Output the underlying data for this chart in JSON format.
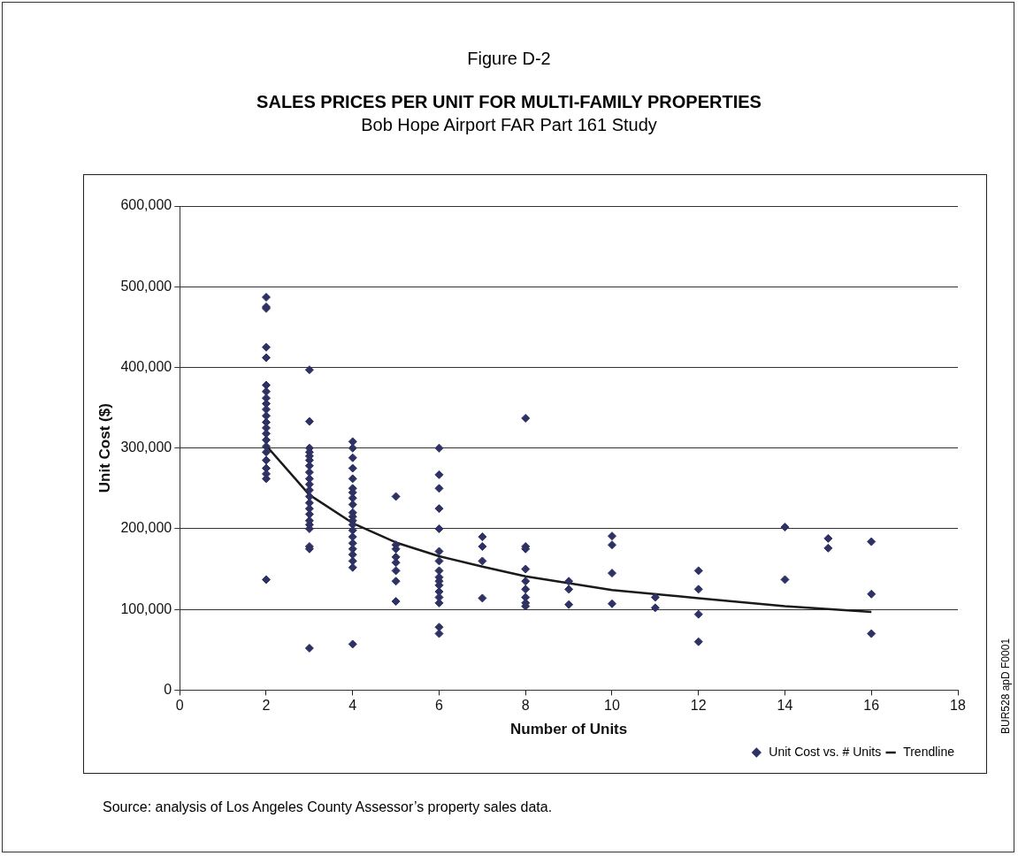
{
  "chart_data": {
    "type": "scatter",
    "title": "SALES PRICES PER UNIT FOR MULTI-FAMILY PROPERTIES",
    "subtitle": "Bob Hope Airport FAR Part 161 Study",
    "xlabel": "Number of Units",
    "ylabel": "Unit Cost ($)",
    "xlim": [
      0,
      18
    ],
    "xticks": [
      0,
      2,
      4,
      6,
      8,
      10,
      12,
      14,
      16,
      18
    ],
    "ylim": [
      0,
      600000
    ],
    "yticks": [
      0,
      {
        "value": 100000,
        "label": "100,000"
      },
      {
        "value": 200000,
        "label": "200,000"
      },
      {
        "value": 300000,
        "label": "300,000"
      },
      {
        "value": 400000,
        "label": "400,000"
      },
      {
        "value": 500000,
        "label": "500,000"
      },
      {
        "value": 600000,
        "label": "600,000"
      }
    ],
    "grid": "y",
    "legend": "bottom right",
    "marker": "diamond",
    "series": [
      {
        "name": "Unit Cost vs. # Units",
        "color": "#2e3163",
        "x": [
          2,
          2,
          2,
          2,
          2,
          2,
          2,
          2,
          2,
          2,
          2,
          2,
          2,
          2,
          2,
          2,
          2,
          2,
          2,
          2,
          2,
          2,
          3,
          3,
          3,
          3,
          3,
          3,
          3,
          3,
          3,
          3,
          3,
          3,
          3,
          3,
          3,
          3,
          3,
          3,
          3,
          3,
          3,
          4,
          4,
          4,
          4,
          4,
          4,
          4,
          4,
          4,
          4,
          4,
          4,
          4,
          4,
          4,
          4,
          4,
          4,
          4,
          4,
          4,
          5,
          5,
          5,
          5,
          5,
          5,
          5,
          5,
          6,
          6,
          6,
          6,
          6,
          6,
          6,
          6,
          6,
          6,
          6,
          6,
          6,
          6,
          6,
          6,
          7,
          7,
          7,
          7,
          8,
          8,
          8,
          8,
          8,
          8,
          8,
          8,
          8,
          9,
          9,
          9,
          10,
          10,
          10,
          10,
          11,
          11,
          12,
          12,
          12,
          12,
          14,
          14,
          15,
          15,
          16,
          16,
          16
        ],
        "values": [
          487000,
          475000,
          473000,
          425000,
          412000,
          378000,
          370000,
          362000,
          355000,
          348000,
          340000,
          332000,
          325000,
          318000,
          310000,
          302000,
          295000,
          285000,
          275000,
          268000,
          262000,
          137000,
          397000,
          333000,
          300000,
          295000,
          290000,
          285000,
          278000,
          270000,
          262000,
          255000,
          248000,
          240000,
          232000,
          225000,
          218000,
          210000,
          205000,
          200000,
          178000,
          175000,
          52000,
          308000,
          300000,
          288000,
          275000,
          262000,
          250000,
          245000,
          238000,
          230000,
          220000,
          215000,
          210000,
          205000,
          198000,
          190000,
          182000,
          175000,
          168000,
          160000,
          152000,
          57000,
          240000,
          180000,
          175000,
          165000,
          158000,
          148000,
          135000,
          110000,
          300000,
          267000,
          250000,
          225000,
          200000,
          172000,
          160000,
          148000,
          140000,
          135000,
          130000,
          122000,
          115000,
          108000,
          78000,
          70000,
          190000,
          178000,
          160000,
          114000,
          337000,
          178000,
          175000,
          150000,
          135000,
          125000,
          115000,
          108000,
          104000,
          135000,
          125000,
          106000,
          191000,
          180000,
          145000,
          107000,
          115000,
          102000,
          148000,
          125000,
          94000,
          60000,
          202000,
          137000,
          188000,
          176000,
          184000,
          119000,
          70000
        ]
      },
      {
        "name": "Trendline",
        "color": "#1a1a1a",
        "type": "line",
        "marker": "none",
        "line_style": "solid",
        "x": [
          2,
          3,
          4,
          5,
          6,
          7,
          8,
          10,
          12,
          14,
          16
        ],
        "values": [
          303000,
          242000,
          207000,
          183000,
          166000,
          153000,
          141000,
          124000,
          114000,
          104000,
          97000
        ]
      }
    ],
    "annotations": [
      "Figure D-2",
      "Source:  analysis of Los Angeles County Assessor’s property sales data.",
      "BUR528 apD F0001"
    ]
  }
}
